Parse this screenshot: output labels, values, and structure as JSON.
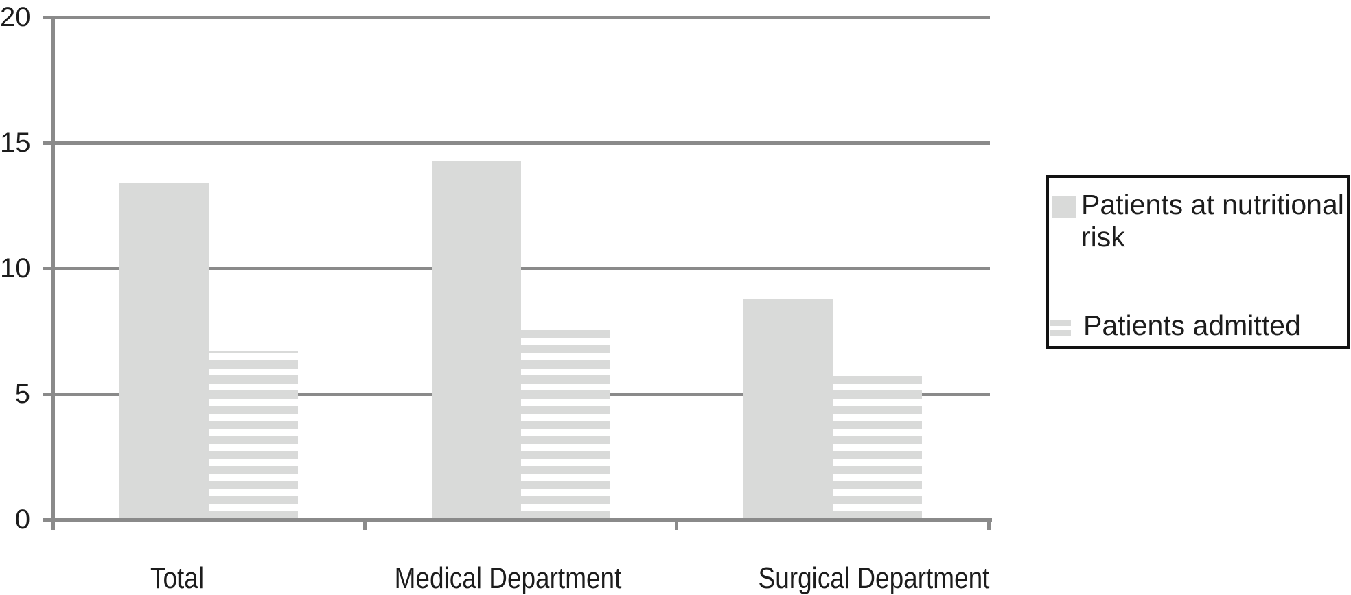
{
  "chart_data": {
    "type": "bar",
    "categories": [
      "Total",
      "Medical Department",
      "Surgical Department"
    ],
    "series": [
      {
        "name": "Patients at nutritional risk",
        "pattern": "solid",
        "values": [
          13.4,
          14.3,
          8.8
        ]
      },
      {
        "name": "Patients admitted",
        "pattern": "striped",
        "values": [
          6.7,
          7.6,
          5.7
        ]
      }
    ],
    "title": "",
    "xlabel": "",
    "ylabel": "",
    "ylim": [
      0,
      20
    ],
    "yticks": [
      0,
      5,
      10,
      15,
      20
    ],
    "grid": "horizontal-gridlines",
    "legend_position": "right"
  },
  "legend": {
    "items": [
      {
        "label": "Patients at nutritional risk",
        "swatch": "solid-gray-square"
      },
      {
        "label": "Patients admitted",
        "swatch": "striped-gray-square"
      }
    ]
  },
  "colors": {
    "bar_fill": "#d9dad9",
    "stripe_gap": "#ffffff",
    "grid_line": "#8a8a8a",
    "text": "#1c1c1c",
    "legend_border": "#121212",
    "background": "#ffffff"
  }
}
